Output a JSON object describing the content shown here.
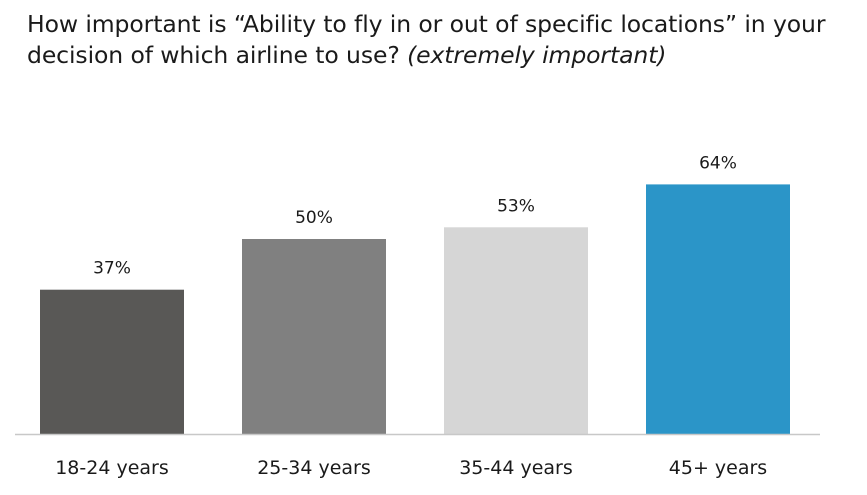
{
  "title": {
    "main": "How important is “Ability to fly in or out of specific locations” in your decision of which airline to use?",
    "qualifier": "(extremely important)"
  },
  "chart_data": {
    "type": "bar",
    "title": "How important is “Ability to fly in or out of specific locations” in your decision of which airline to use? (extremely important)",
    "categories": [
      "18-24 years",
      "25-34 years",
      "35-44 years",
      "45+ years"
    ],
    "values": [
      37,
      50,
      53,
      64
    ],
    "data_labels": [
      "37%",
      "50%",
      "53%",
      "64%"
    ],
    "unit": "%",
    "colors": [
      "#595856",
      "#808080",
      "#d6d6d6",
      "#2b95c8"
    ],
    "baseline_color": "#c8c8c8",
    "xlabel": "",
    "ylabel": "",
    "ylim": [
      0,
      100
    ],
    "grid": false,
    "legend": "none"
  }
}
